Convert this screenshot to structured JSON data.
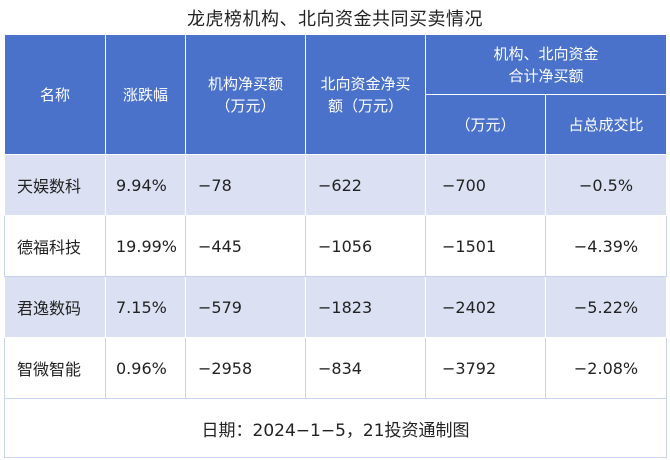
{
  "title": "龙虎榜机构、北向资金共同买卖情况",
  "header": {
    "name": "名称",
    "change": "涨跌幅",
    "inst": "机构净买额\n（万元）",
    "north": "北向资金净买\n额（万元）",
    "combined": "机构、北向资金\n合计净买额",
    "combined_unit": "（万元）",
    "share": "占总成交比"
  },
  "rows": [
    {
      "name": "天娱数科",
      "change": "9.94%",
      "inst": "−78",
      "north": "−622",
      "combined": "−700",
      "share": "−0.5%"
    },
    {
      "name": "德福科技",
      "change": "19.99%",
      "inst": "−445",
      "north": "−1056",
      "combined": "−1501",
      "share": "−4.39%"
    },
    {
      "name": "君逸数码",
      "change": "7.15%",
      "inst": "−579",
      "north": "−1823",
      "combined": "−2402",
      "share": "−5.22%"
    },
    {
      "name": "智微智能",
      "change": "0.96%",
      "inst": "−2958",
      "north": "−834",
      "combined": "−3792",
      "share": "−2.08%"
    }
  ],
  "footer": "日期：2024−1−5，21投资通制图",
  "colors": {
    "header_bg": "#4a72cb",
    "stripe_bg": "#dbe1f3"
  }
}
